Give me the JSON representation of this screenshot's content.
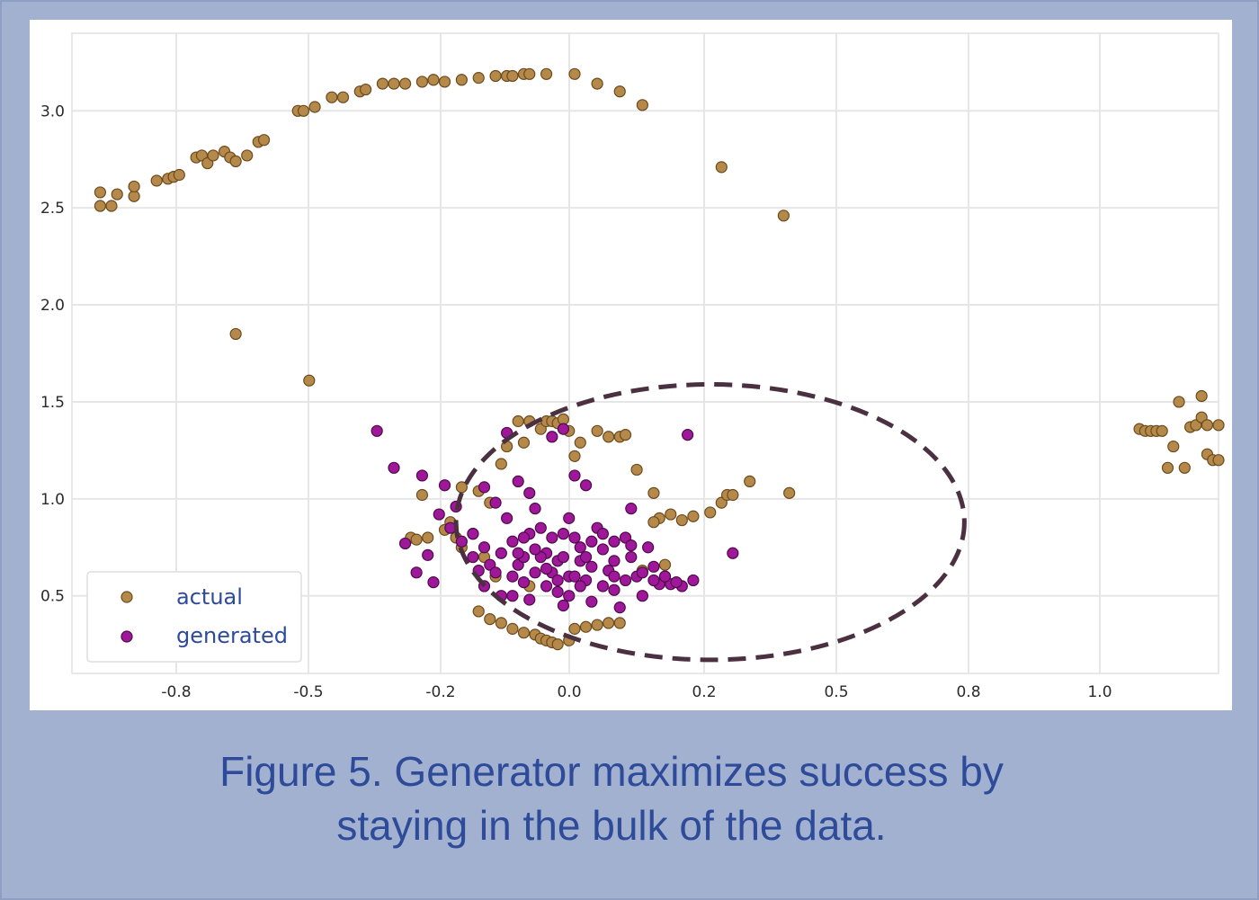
{
  "caption": {
    "line1": "Figure 5. Generator maximizes success by",
    "line2": "staying in the bulk of the data."
  },
  "chart_data": {
    "type": "scatter",
    "title": "",
    "xlabel": "",
    "ylabel": "",
    "xlim": [
      -0.93,
      1.1
    ],
    "ylim": [
      0.1,
      3.4
    ],
    "grid": true,
    "legend_position": "bottom-left",
    "x_tick_labels": [
      "-0.8",
      "-0.5",
      "-0.2",
      "0.0",
      "0.2",
      "0.5",
      "0.8",
      "1.0"
    ],
    "y_ticks": [
      0.5,
      1.0,
      1.5,
      2.0,
      2.5,
      3.0
    ],
    "y_tick_labels": [
      "0.5",
      "1.0",
      "1.5",
      "2.0",
      "2.5",
      "3.0"
    ],
    "annotation": "dashed ellipse around the generated cluster",
    "ellipse": {
      "cx": 0.2,
      "cy": 0.88,
      "rx": 0.45,
      "ry": 0.71
    },
    "colors": {
      "actual": "#b5894a",
      "generated": "#a0189a",
      "ellipse": "#4a3040"
    },
    "series": [
      {
        "name": "actual",
        "points": [
          [
            -0.88,
            2.58
          ],
          [
            -0.88,
            2.51
          ],
          [
            -0.86,
            2.51
          ],
          [
            -0.85,
            2.57
          ],
          [
            -0.82,
            2.56
          ],
          [
            -0.82,
            2.61
          ],
          [
            -0.78,
            2.64
          ],
          [
            -0.76,
            2.65
          ],
          [
            -0.75,
            2.66
          ],
          [
            -0.74,
            2.67
          ],
          [
            -0.71,
            2.76
          ],
          [
            -0.7,
            2.77
          ],
          [
            -0.69,
            2.73
          ],
          [
            -0.68,
            2.77
          ],
          [
            -0.66,
            2.79
          ],
          [
            -0.65,
            2.76
          ],
          [
            -0.64,
            2.74
          ],
          [
            -0.62,
            2.77
          ],
          [
            -0.6,
            2.84
          ],
          [
            -0.59,
            2.85
          ],
          [
            -0.53,
            3.0
          ],
          [
            -0.52,
            3.0
          ],
          [
            -0.5,
            3.02
          ],
          [
            -0.47,
            3.07
          ],
          [
            -0.45,
            3.07
          ],
          [
            -0.42,
            3.1
          ],
          [
            -0.41,
            3.11
          ],
          [
            -0.38,
            3.14
          ],
          [
            -0.36,
            3.14
          ],
          [
            -0.34,
            3.14
          ],
          [
            -0.31,
            3.15
          ],
          [
            -0.29,
            3.16
          ],
          [
            -0.27,
            3.15
          ],
          [
            -0.24,
            3.16
          ],
          [
            -0.21,
            3.17
          ],
          [
            -0.18,
            3.18
          ],
          [
            -0.16,
            3.18
          ],
          [
            -0.15,
            3.18
          ],
          [
            -0.13,
            3.19
          ],
          [
            -0.12,
            3.19
          ],
          [
            -0.09,
            3.19
          ],
          [
            -0.04,
            3.19
          ],
          [
            0.0,
            3.14
          ],
          [
            0.04,
            3.1
          ],
          [
            0.08,
            3.03
          ],
          [
            0.22,
            2.71
          ],
          [
            0.33,
            2.46
          ],
          [
            -0.64,
            1.85
          ],
          [
            -0.51,
            1.61
          ],
          [
            0.96,
            1.36
          ],
          [
            0.97,
            1.35
          ],
          [
            0.98,
            1.35
          ],
          [
            0.99,
            1.35
          ],
          [
            1.0,
            1.35
          ],
          [
            1.01,
            1.16
          ],
          [
            1.02,
            1.27
          ],
          [
            1.03,
            1.5
          ],
          [
            1.04,
            1.16
          ],
          [
            1.05,
            1.37
          ],
          [
            1.06,
            1.38
          ],
          [
            1.07,
            1.53
          ],
          [
            1.07,
            1.42
          ],
          [
            1.08,
            1.38
          ],
          [
            1.08,
            1.23
          ],
          [
            1.09,
            1.2
          ],
          [
            1.1,
            1.38
          ],
          [
            1.1,
            1.2
          ],
          [
            -0.31,
            1.02
          ],
          [
            -0.33,
            0.8
          ],
          [
            -0.32,
            0.79
          ],
          [
            -0.3,
            0.8
          ],
          [
            -0.27,
            0.84
          ],
          [
            -0.26,
            0.88
          ],
          [
            -0.25,
            0.8
          ],
          [
            -0.24,
            0.75
          ],
          [
            -0.24,
            1.06
          ],
          [
            -0.21,
            1.04
          ],
          [
            -0.22,
            0.82
          ],
          [
            -0.19,
            0.98
          ],
          [
            -0.17,
            1.18
          ],
          [
            -0.16,
            1.27
          ],
          [
            -0.14,
            1.4
          ],
          [
            -0.13,
            1.29
          ],
          [
            -0.12,
            1.4
          ],
          [
            -0.1,
            1.36
          ],
          [
            -0.09,
            1.4
          ],
          [
            -0.08,
            1.4
          ],
          [
            -0.07,
            1.39
          ],
          [
            -0.06,
            1.41
          ],
          [
            -0.05,
            1.35
          ],
          [
            -0.04,
            1.22
          ],
          [
            -0.03,
            1.29
          ],
          [
            0.0,
            1.35
          ],
          [
            0.02,
            1.32
          ],
          [
            0.04,
            1.32
          ],
          [
            0.05,
            1.33
          ],
          [
            0.07,
            1.15
          ],
          [
            0.1,
            1.03
          ],
          [
            0.11,
            0.9
          ],
          [
            0.13,
            0.92
          ],
          [
            0.15,
            0.89
          ],
          [
            0.17,
            0.91
          ],
          [
            0.2,
            0.93
          ],
          [
            0.22,
            0.98
          ],
          [
            0.23,
            1.02
          ],
          [
            0.24,
            1.02
          ],
          [
            0.27,
            1.09
          ],
          [
            0.34,
            1.03
          ],
          [
            -0.21,
            0.42
          ],
          [
            -0.19,
            0.38
          ],
          [
            -0.17,
            0.36
          ],
          [
            -0.15,
            0.33
          ],
          [
            -0.13,
            0.31
          ],
          [
            -0.11,
            0.3
          ],
          [
            -0.1,
            0.28
          ],
          [
            -0.09,
            0.27
          ],
          [
            -0.08,
            0.26
          ],
          [
            -0.07,
            0.25
          ],
          [
            -0.05,
            0.27
          ],
          [
            -0.04,
            0.33
          ],
          [
            -0.02,
            0.34
          ],
          [
            0.0,
            0.35
          ],
          [
            0.02,
            0.36
          ],
          [
            0.04,
            0.36
          ],
          [
            -0.12,
            0.55
          ],
          [
            -0.18,
            0.6
          ],
          [
            -0.2,
            0.7
          ],
          [
            0.12,
            0.66
          ],
          [
            0.08,
            0.63
          ],
          [
            0.1,
            0.88
          ]
        ]
      },
      {
        "name": "generated",
        "points": [
          [
            -0.28,
            0.92
          ],
          [
            -0.26,
            0.85
          ],
          [
            -0.24,
            0.78
          ],
          [
            -0.22,
            0.7
          ],
          [
            -0.21,
            0.63
          ],
          [
            -0.2,
            0.55
          ],
          [
            -0.18,
            0.98
          ],
          [
            -0.17,
            0.5
          ],
          [
            -0.16,
            0.9
          ],
          [
            -0.15,
            0.78
          ],
          [
            -0.14,
            0.66
          ],
          [
            -0.13,
            0.57
          ],
          [
            -0.12,
            0.48
          ],
          [
            -0.11,
            0.95
          ],
          [
            -0.1,
            0.85
          ],
          [
            -0.09,
            0.72
          ],
          [
            -0.08,
            0.62
          ],
          [
            -0.07,
            0.52
          ],
          [
            -0.06,
            0.45
          ],
          [
            -0.05,
            0.9
          ],
          [
            -0.04,
            0.8
          ],
          [
            -0.03,
            0.68
          ],
          [
            -0.02,
            0.58
          ],
          [
            -0.01,
            0.47
          ],
          [
            0.0,
            0.85
          ],
          [
            0.01,
            0.74
          ],
          [
            0.02,
            0.63
          ],
          [
            0.03,
            0.53
          ],
          [
            0.04,
            0.44
          ],
          [
            0.05,
            0.8
          ],
          [
            0.06,
            0.7
          ],
          [
            0.07,
            0.6
          ],
          [
            0.08,
            0.5
          ],
          [
            0.09,
            0.75
          ],
          [
            0.1,
            0.65
          ],
          [
            0.11,
            0.56
          ],
          [
            0.12,
            0.6
          ],
          [
            0.13,
            0.56
          ],
          [
            0.15,
            0.55
          ],
          [
            0.17,
            0.58
          ],
          [
            -0.13,
            0.7
          ],
          [
            -0.11,
            0.62
          ],
          [
            -0.09,
            0.55
          ],
          [
            -0.07,
            0.68
          ],
          [
            -0.05,
            0.6
          ],
          [
            -0.03,
            0.75
          ],
          [
            -0.01,
            0.65
          ],
          [
            0.01,
            0.55
          ],
          [
            0.03,
            0.68
          ],
          [
            0.05,
            0.58
          ],
          [
            -0.2,
            0.75
          ],
          [
            -0.19,
            0.66
          ],
          [
            -0.17,
            0.72
          ],
          [
            -0.15,
            0.6
          ],
          [
            -0.12,
            0.82
          ],
          [
            -0.1,
            0.7
          ],
          [
            -0.08,
            0.8
          ],
          [
            -0.06,
            0.7
          ],
          [
            -0.04,
            0.6
          ],
          [
            -0.02,
            0.7
          ],
          [
            -0.15,
            0.5
          ],
          [
            -0.13,
            0.8
          ],
          [
            -0.11,
            0.74
          ],
          [
            -0.09,
            0.64
          ],
          [
            -0.07,
            0.58
          ],
          [
            -0.05,
            0.5
          ],
          [
            -0.03,
            0.55
          ],
          [
            -0.01,
            0.78
          ],
          [
            0.01,
            0.82
          ],
          [
            0.03,
            0.6
          ],
          [
            -0.34,
            0.77
          ],
          [
            -0.32,
            0.62
          ],
          [
            -0.3,
            0.71
          ],
          [
            -0.29,
            0.57
          ],
          [
            -0.39,
            1.35
          ],
          [
            -0.36,
            1.16
          ],
          [
            -0.31,
            1.12
          ],
          [
            -0.27,
            1.07
          ],
          [
            -0.25,
            0.96
          ],
          [
            -0.2,
            1.06
          ],
          [
            -0.16,
            1.34
          ],
          [
            -0.14,
            1.09
          ],
          [
            -0.12,
            1.03
          ],
          [
            -0.08,
            1.32
          ],
          [
            -0.06,
            1.36
          ],
          [
            -0.04,
            1.12
          ],
          [
            -0.02,
            1.07
          ],
          [
            0.06,
            0.95
          ],
          [
            0.16,
            1.33
          ],
          [
            0.24,
            0.72
          ],
          [
            0.06,
            0.76
          ],
          [
            0.08,
            0.62
          ],
          [
            0.1,
            0.58
          ],
          [
            0.12,
            0.6
          ],
          [
            0.14,
            0.57
          ],
          [
            0.03,
            0.78
          ],
          [
            -0.06,
            0.82
          ],
          [
            -0.14,
            0.72
          ],
          [
            -0.18,
            0.62
          ],
          [
            -0.22,
            0.82
          ]
        ]
      }
    ]
  }
}
